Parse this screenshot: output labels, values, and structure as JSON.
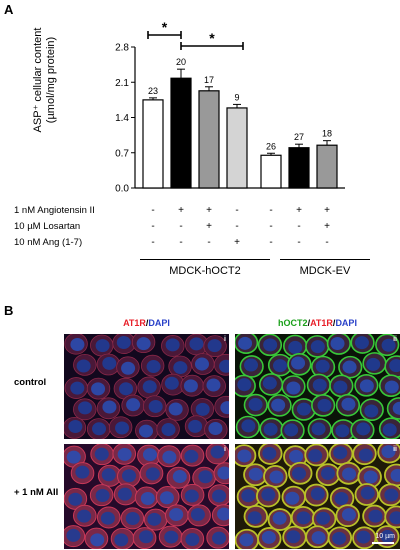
{
  "panel_a": {
    "letter": "A",
    "ylabel_line1": "ASP⁺ cellular content",
    "ylabel_line2": "(µmol/mg protein)",
    "significance_mark": "*",
    "conditions": [
      {
        "label": "1 nM Angiotensin II",
        "signs": [
          "-",
          "+",
          "+",
          "-",
          "-",
          "+",
          "+"
        ]
      },
      {
        "label": "10 µM Losartan",
        "signs": [
          "-",
          "-",
          "+",
          "-",
          "-",
          "-",
          "+"
        ]
      },
      {
        "label": "10 nM Ang (1-7)",
        "signs": [
          "-",
          "-",
          "-",
          "+",
          "-",
          "-",
          "-"
        ]
      }
    ],
    "groups": [
      "MDCK-hOCT2",
      "MDCK-EV"
    ]
  },
  "chart_data": {
    "type": "bar",
    "ylim": [
      0,
      2.8
    ],
    "yticks": [
      0.0,
      0.7,
      1.4,
      2.1,
      2.8
    ],
    "ytick_labels": [
      "0.0",
      "0.7",
      "1.4",
      "2.1",
      "2.8"
    ],
    "values": [
      1.75,
      2.18,
      1.93,
      1.59,
      0.65,
      0.8,
      0.85
    ],
    "errors": [
      0.04,
      0.18,
      0.08,
      0.07,
      0.04,
      0.07,
      0.09
    ],
    "n_labels": [
      "23",
      "20",
      "17",
      "9",
      "26",
      "27",
      "18"
    ],
    "bar_colors": [
      "#ffffff",
      "#000000",
      "#999999",
      "#d4d4d4",
      "#ffffff",
      "#000000",
      "#999999"
    ],
    "grid": false
  },
  "panel_b": {
    "letter": "B",
    "col_titles": [
      {
        "part1": "AT1R",
        "sep": "/",
        "part2": "DAPI"
      },
      {
        "part1": "hOCT2",
        "sep": "/",
        "part2": "AT1R",
        "sep2": "/",
        "part3": "DAPI"
      }
    ],
    "title_colors": {
      "red": "#e8202a",
      "blue": "#2840c8",
      "green": "#1aa01a"
    },
    "row_labels": [
      "control",
      "+ 1 nM AII"
    ],
    "sub_labels": [
      "i",
      "ii"
    ],
    "scale_bar": "10 µm"
  }
}
